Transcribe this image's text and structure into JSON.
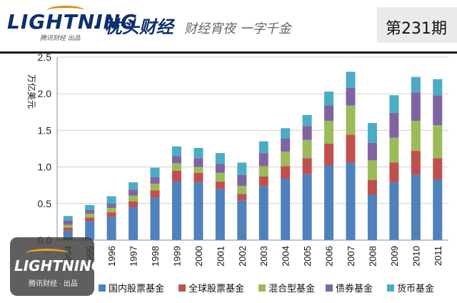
{
  "header": {
    "logo_text": "LIGHTNING",
    "logo_sub": "腾讯财经 出品",
    "brand": "· 枕头财经",
    "slogan": "财经宵夜 一字千金",
    "issue": "第231期"
  },
  "watermark": {
    "logo_text": "LIGHTNING",
    "sub": "腾讯财经 · 出品"
  },
  "colors": {
    "navy": "#0f2f6f",
    "accent_orange": "#e08a10"
  },
  "chart_data": {
    "type": "bar",
    "stacked": true,
    "title": "",
    "xlabel": "",
    "ylabel": "万亿美元",
    "ylim": [
      0,
      2.5
    ],
    "yticks": [
      "0.0",
      "0.5",
      "1.0",
      "1.5",
      "2.0",
      "2.5"
    ],
    "grid": true,
    "legend_position": "bottom",
    "categories": [
      "1994",
      "1995",
      "1996",
      "1997",
      "1998",
      "1999",
      "2000",
      "2001",
      "2002",
      "2003",
      "2004",
      "2005",
      "2006",
      "2007",
      "2008",
      "2009",
      "2010",
      "2011"
    ],
    "series": [
      {
        "name": "国内股票基金",
        "color": "#4f81bd",
        "values": [
          0.13,
          0.26,
          0.32,
          0.45,
          0.58,
          0.8,
          0.79,
          0.7,
          0.54,
          0.74,
          0.84,
          0.9,
          1.02,
          1.06,
          0.62,
          0.79,
          0.89,
          0.83
        ]
      },
      {
        "name": "全球股票基金",
        "color": "#c0504d",
        "values": [
          0.04,
          0.05,
          0.06,
          0.08,
          0.1,
          0.15,
          0.13,
          0.1,
          0.09,
          0.13,
          0.17,
          0.22,
          0.3,
          0.38,
          0.2,
          0.27,
          0.33,
          0.29
        ]
      },
      {
        "name": "混合型基金",
        "color": "#9bbb59",
        "values": [
          0.04,
          0.05,
          0.06,
          0.08,
          0.09,
          0.1,
          0.08,
          0.12,
          0.11,
          0.14,
          0.2,
          0.25,
          0.31,
          0.4,
          0.27,
          0.34,
          0.41,
          0.45
        ]
      },
      {
        "name": "债券基金",
        "color": "#8064a2",
        "values": [
          0.06,
          0.05,
          0.06,
          0.08,
          0.09,
          0.1,
          0.12,
          0.12,
          0.15,
          0.18,
          0.18,
          0.19,
          0.21,
          0.24,
          0.24,
          0.34,
          0.39,
          0.41
        ]
      },
      {
        "name": "货币基金",
        "color": "#4bacc6",
        "values": [
          0.06,
          0.07,
          0.1,
          0.1,
          0.13,
          0.13,
          0.14,
          0.15,
          0.17,
          0.16,
          0.14,
          0.15,
          0.19,
          0.22,
          0.27,
          0.24,
          0.21,
          0.22
        ]
      }
    ]
  }
}
